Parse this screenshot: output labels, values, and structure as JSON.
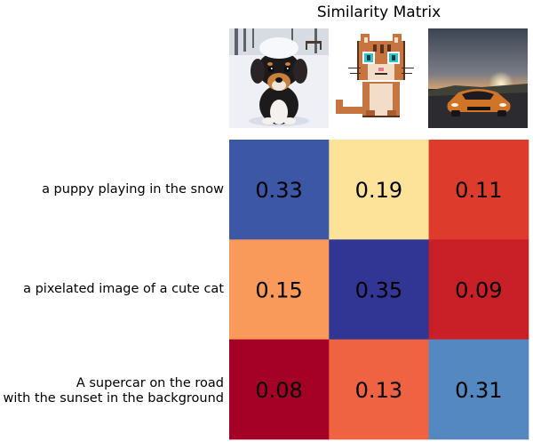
{
  "title": "Similarity Matrix",
  "images": [
    {
      "name": "puppy-image",
      "subject": "puppy sitting in the snow"
    },
    {
      "name": "cat-image",
      "subject": "pixel-art cat"
    },
    {
      "name": "car-image",
      "subject": "orange supercar on a road at sunset"
    }
  ],
  "rows": [
    {
      "lines": [
        "a puppy playing in the snow"
      ]
    },
    {
      "lines": [
        "a pixelated image of a cute cat"
      ]
    },
    {
      "lines": [
        "A supercar on the road",
        "with the sunset in the background"
      ]
    }
  ],
  "chart_data": {
    "type": "heatmap",
    "title": "Similarity Matrix",
    "row_labels": [
      "a puppy playing in the snow",
      "a pixelated image of a cute cat",
      "A supercar on the road with the sunset in the background"
    ],
    "values": [
      [
        0.33,
        0.19,
        0.11
      ],
      [
        0.15,
        0.35,
        0.09
      ],
      [
        0.08,
        0.13,
        0.31
      ]
    ],
    "cell_colors": [
      [
        "#3b57a5",
        "#fde39a",
        "#dd3b2c"
      ],
      [
        "#f99a5a",
        "#313695",
        "#c92028"
      ],
      [
        "#a50026",
        "#ef6342",
        "#5388c0"
      ]
    ],
    "colormap": "RdYlBu"
  }
}
